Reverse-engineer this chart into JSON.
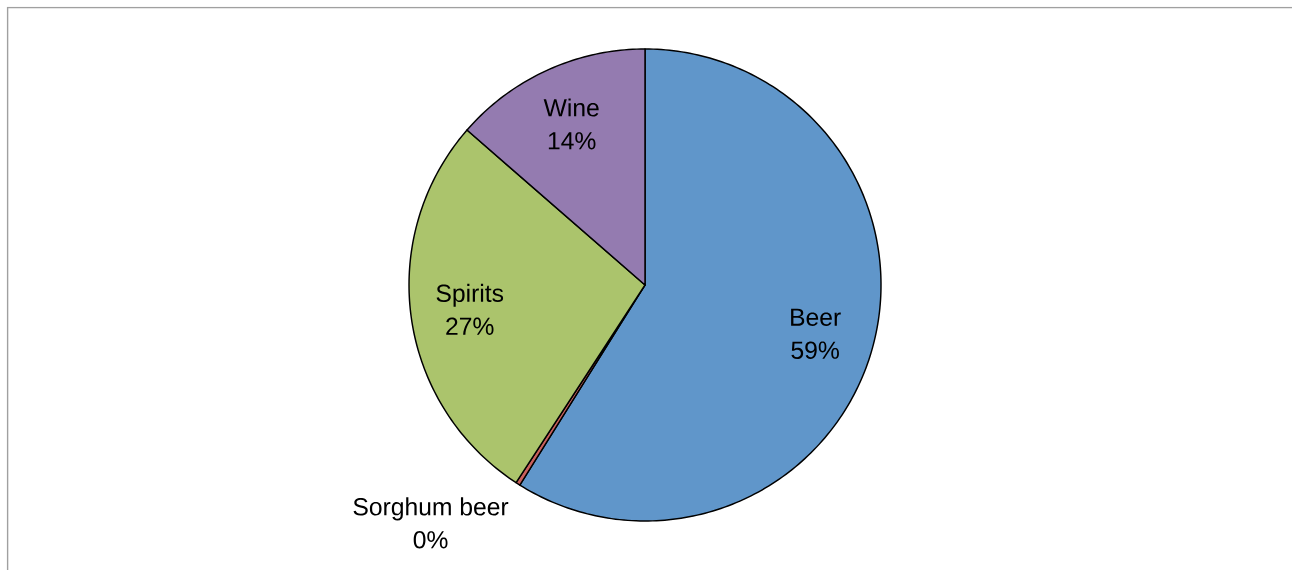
{
  "chart_data": {
    "type": "pie",
    "categories": [
      "Beer",
      "Sorghum beer",
      "Spirits",
      "Wine"
    ],
    "values": [
      58.9,
      0.3,
      27.2,
      13.6
    ],
    "value_labels": [
      "59%",
      "0%",
      "27%",
      "14%"
    ],
    "colors": [
      "#6096ca",
      "#c9605c",
      "#abc46c",
      "#947bb0"
    ]
  }
}
